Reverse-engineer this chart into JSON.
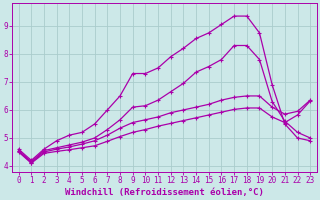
{
  "xlabel": "Windchill (Refroidissement éolien,°C)",
  "bg_color": "#cce8e8",
  "grid_color": "#aacccc",
  "line_color": "#aa00aa",
  "xlim": [
    -0.5,
    23.5
  ],
  "ylim": [
    3.8,
    9.8
  ],
  "yticks": [
    4,
    5,
    6,
    7,
    8,
    9
  ],
  "xticks": [
    0,
    1,
    2,
    3,
    4,
    5,
    6,
    7,
    8,
    9,
    10,
    11,
    12,
    13,
    14,
    15,
    16,
    17,
    18,
    19,
    20,
    21,
    22,
    23
  ],
  "line1_x": [
    0,
    1,
    2,
    3,
    4,
    5,
    6,
    7,
    8,
    9,
    10,
    11,
    12,
    13,
    14,
    15,
    16,
    17,
    18,
    19,
    20,
    21,
    22,
    23
  ],
  "line1_y": [
    4.6,
    4.2,
    4.6,
    4.9,
    5.1,
    5.2,
    5.5,
    6.0,
    6.5,
    7.3,
    7.3,
    7.5,
    7.9,
    8.2,
    8.55,
    8.75,
    9.05,
    9.35,
    9.35,
    8.75,
    6.9,
    5.5,
    5.0,
    4.9
  ],
  "line2_x": [
    0,
    1,
    2,
    3,
    4,
    5,
    6,
    7,
    8,
    9,
    10,
    11,
    12,
    13,
    14,
    15,
    16,
    17,
    18,
    19,
    20,
    21,
    22,
    23
  ],
  "line2_y": [
    4.55,
    4.15,
    4.55,
    4.65,
    4.75,
    4.85,
    5.0,
    5.3,
    5.65,
    6.1,
    6.15,
    6.35,
    6.65,
    6.95,
    7.35,
    7.55,
    7.8,
    8.3,
    8.3,
    7.8,
    6.3,
    5.6,
    5.2,
    5.0
  ],
  "line3_x": [
    0,
    1,
    2,
    3,
    4,
    5,
    6,
    7,
    8,
    9,
    10,
    11,
    12,
    13,
    14,
    15,
    16,
    17,
    18,
    19,
    20,
    21,
    22,
    23
  ],
  "line3_y": [
    4.52,
    4.12,
    4.5,
    4.6,
    4.68,
    4.78,
    4.9,
    5.1,
    5.35,
    5.55,
    5.65,
    5.75,
    5.9,
    6.0,
    6.1,
    6.2,
    6.35,
    6.45,
    6.5,
    6.5,
    6.1,
    5.85,
    5.95,
    6.35
  ],
  "line4_x": [
    0,
    1,
    2,
    3,
    4,
    5,
    6,
    7,
    8,
    9,
    10,
    11,
    12,
    13,
    14,
    15,
    16,
    17,
    18,
    19,
    20,
    21,
    22,
    23
  ],
  "line4_y": [
    4.5,
    4.1,
    4.45,
    4.52,
    4.58,
    4.65,
    4.72,
    4.88,
    5.05,
    5.2,
    5.3,
    5.42,
    5.52,
    5.62,
    5.72,
    5.82,
    5.92,
    6.02,
    6.07,
    6.07,
    5.75,
    5.55,
    5.82,
    6.32
  ],
  "font_family": "monospace",
  "tick_fontsize": 5.5,
  "label_fontsize": 6.5,
  "marker": "P",
  "markersize": 2.5,
  "linewidth": 0.9
}
